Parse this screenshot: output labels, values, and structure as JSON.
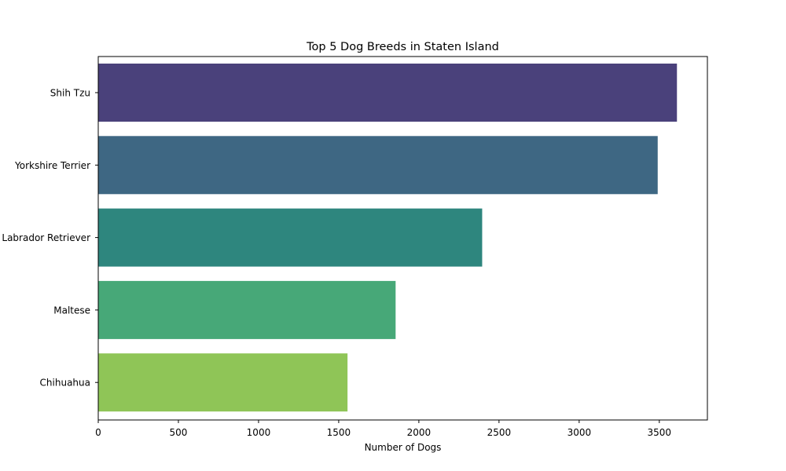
{
  "chart_data": {
    "type": "bar",
    "orientation": "horizontal",
    "title": "Top 5 Dog Breeds in Staten Island",
    "xlabel": "Number of Dogs",
    "ylabel": "",
    "categories": [
      "Shih Tzu",
      "Yorkshire Terrier",
      "Labrador Retriever",
      "Maltese",
      "Chihuahua"
    ],
    "values": [
      3610,
      3490,
      2395,
      1855,
      1555
    ],
    "colors": [
      "#4a417b",
      "#3e6783",
      "#2e867e",
      "#47a878",
      "#8fc557"
    ],
    "xlim": [
      0,
      3800
    ],
    "xticks": [
      0,
      500,
      1000,
      1500,
      2000,
      2500,
      3000,
      3500
    ],
    "grid": false,
    "legend": "none"
  }
}
